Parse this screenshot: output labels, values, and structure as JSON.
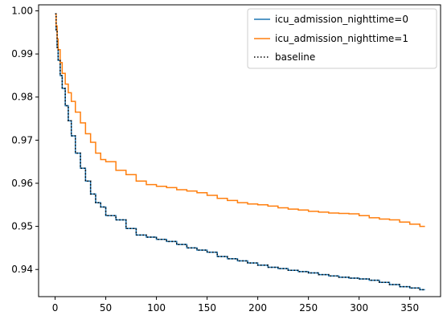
{
  "chart_data": {
    "type": "line",
    "title": "",
    "xlabel": "",
    "ylabel": "",
    "xlim": [
      -16.3,
      380.4
    ],
    "ylim": [
      0.9337,
      1.0014
    ],
    "xticks": [
      0,
      50,
      100,
      150,
      200,
      250,
      300,
      350
    ],
    "yticks": [
      0.94,
      0.95,
      0.96,
      0.97,
      0.98,
      0.99,
      1.0
    ],
    "ytick_labels": [
      "0.94",
      "0.95",
      "0.96",
      "0.97",
      "0.98",
      "0.99",
      "1.00"
    ],
    "grid": false,
    "legend_position": "top-right",
    "series": [
      {
        "name": "icu_admission_nighttime=0",
        "color": "#1f77b4",
        "style": "step-solid",
        "x": [
          0,
          1,
          2,
          3,
          5,
          7,
          10,
          13,
          16,
          20,
          25,
          30,
          35,
          40,
          45,
          50,
          60,
          70,
          80,
          90,
          100,
          110,
          120,
          130,
          140,
          150,
          160,
          170,
          180,
          190,
          200,
          210,
          220,
          230,
          240,
          250,
          260,
          270,
          280,
          290,
          300,
          310,
          320,
          330,
          340,
          350,
          360,
          365
        ],
        "y": [
          0.9993,
          0.9955,
          0.9915,
          0.9885,
          0.985,
          0.982,
          0.978,
          0.9745,
          0.971,
          0.967,
          0.9635,
          0.9605,
          0.9575,
          0.9555,
          0.9545,
          0.9525,
          0.9515,
          0.9495,
          0.948,
          0.9475,
          0.947,
          0.9465,
          0.9458,
          0.945,
          0.9445,
          0.944,
          0.943,
          0.9425,
          0.942,
          0.9415,
          0.941,
          0.9405,
          0.9402,
          0.9398,
          0.9395,
          0.9392,
          0.9388,
          0.9385,
          0.9382,
          0.938,
          0.9378,
          0.9375,
          0.937,
          0.9365,
          0.936,
          0.9357,
          0.9353,
          0.9353
        ]
      },
      {
        "name": "icu_admission_nighttime=1",
        "color": "#ff7f0e",
        "style": "step-solid",
        "x": [
          0,
          1,
          2,
          3,
          5,
          7,
          10,
          13,
          16,
          20,
          25,
          30,
          35,
          40,
          45,
          50,
          60,
          70,
          80,
          90,
          100,
          110,
          120,
          130,
          140,
          150,
          160,
          170,
          180,
          190,
          200,
          210,
          220,
          230,
          240,
          250,
          260,
          270,
          280,
          290,
          300,
          310,
          320,
          330,
          340,
          350,
          360,
          365
        ],
        "y": [
          0.9993,
          0.9965,
          0.9935,
          0.991,
          0.988,
          0.9855,
          0.983,
          0.981,
          0.979,
          0.9765,
          0.974,
          0.9715,
          0.9695,
          0.967,
          0.9655,
          0.965,
          0.963,
          0.962,
          0.9605,
          0.9597,
          0.9593,
          0.959,
          0.9585,
          0.9582,
          0.9578,
          0.9572,
          0.9565,
          0.956,
          0.9555,
          0.9552,
          0.955,
          0.9547,
          0.9543,
          0.954,
          0.9538,
          0.9535,
          0.9533,
          0.9531,
          0.953,
          0.9529,
          0.9525,
          0.952,
          0.9517,
          0.9515,
          0.951,
          0.9505,
          0.95,
          0.95
        ]
      },
      {
        "name": "baseline",
        "color": "#000000",
        "style": "step-dotted",
        "x": [
          0,
          1,
          2,
          3,
          5,
          7,
          10,
          13,
          16,
          20,
          25,
          30,
          35,
          40,
          45,
          50,
          60,
          70,
          80,
          90,
          100,
          110,
          120,
          130,
          140,
          150,
          160,
          170,
          180,
          190,
          200,
          210,
          220,
          230,
          240,
          250,
          260,
          270,
          280,
          290,
          300,
          310,
          320,
          330,
          340,
          350,
          360,
          365
        ],
        "y": [
          0.9993,
          0.9955,
          0.9915,
          0.9885,
          0.985,
          0.982,
          0.978,
          0.9745,
          0.971,
          0.967,
          0.9635,
          0.9605,
          0.9575,
          0.9555,
          0.9545,
          0.9525,
          0.9515,
          0.9495,
          0.948,
          0.9475,
          0.947,
          0.9465,
          0.9458,
          0.945,
          0.9445,
          0.944,
          0.943,
          0.9425,
          0.942,
          0.9415,
          0.941,
          0.9405,
          0.9402,
          0.9398,
          0.9395,
          0.9392,
          0.9388,
          0.9385,
          0.9382,
          0.938,
          0.9378,
          0.9375,
          0.937,
          0.9365,
          0.936,
          0.9357,
          0.9353,
          0.9353
        ]
      }
    ]
  }
}
